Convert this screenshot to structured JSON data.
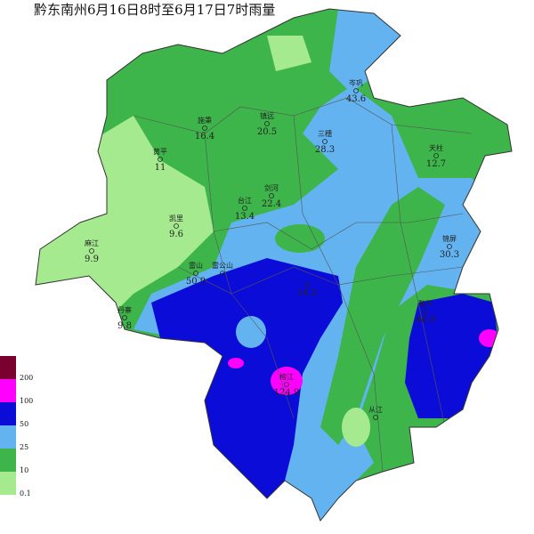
{
  "title": "黔东南州6月16日8时至6月17日7时雨量",
  "stations": [
    {
      "name": "岑巩",
      "value": 43.6
    },
    {
      "name": "施秉",
      "value": 16.4
    },
    {
      "name": "镇远",
      "value": 20.5
    },
    {
      "name": "三穗",
      "value": 28.3
    },
    {
      "name": "天柱",
      "value": 12.7
    },
    {
      "name": "黄平",
      "value": 11
    },
    {
      "name": "剑河",
      "value": 22.4
    },
    {
      "name": "台江",
      "value": 13.4
    },
    {
      "name": "凯里",
      "value": 9.6
    },
    {
      "name": "麻江",
      "value": 9.9
    },
    {
      "name": "锦屏",
      "value": 30.3
    },
    {
      "name": "雷山",
      "value": 50.9
    },
    {
      "name": "雷公山"
    },
    {
      "value": 14.2
    },
    {
      "name": "丹寨",
      "value": 9.8
    },
    {
      "name": "黎平",
      "value": 48.9
    },
    {
      "name": "榕江",
      "value": 124.9
    },
    {
      "name": "从江"
    }
  ],
  "legend": [
    {
      "label": 200,
      "color": "#7a0030"
    },
    {
      "label": 100,
      "color": "#ff00ff"
    },
    {
      "label": 50,
      "color": "#0c0cd8"
    },
    {
      "label": 25,
      "color": "#62b3f0"
    },
    {
      "label": 10,
      "color": "#3db54a"
    },
    {
      "label": 0.1,
      "color": "#a6ea8f"
    }
  ]
}
